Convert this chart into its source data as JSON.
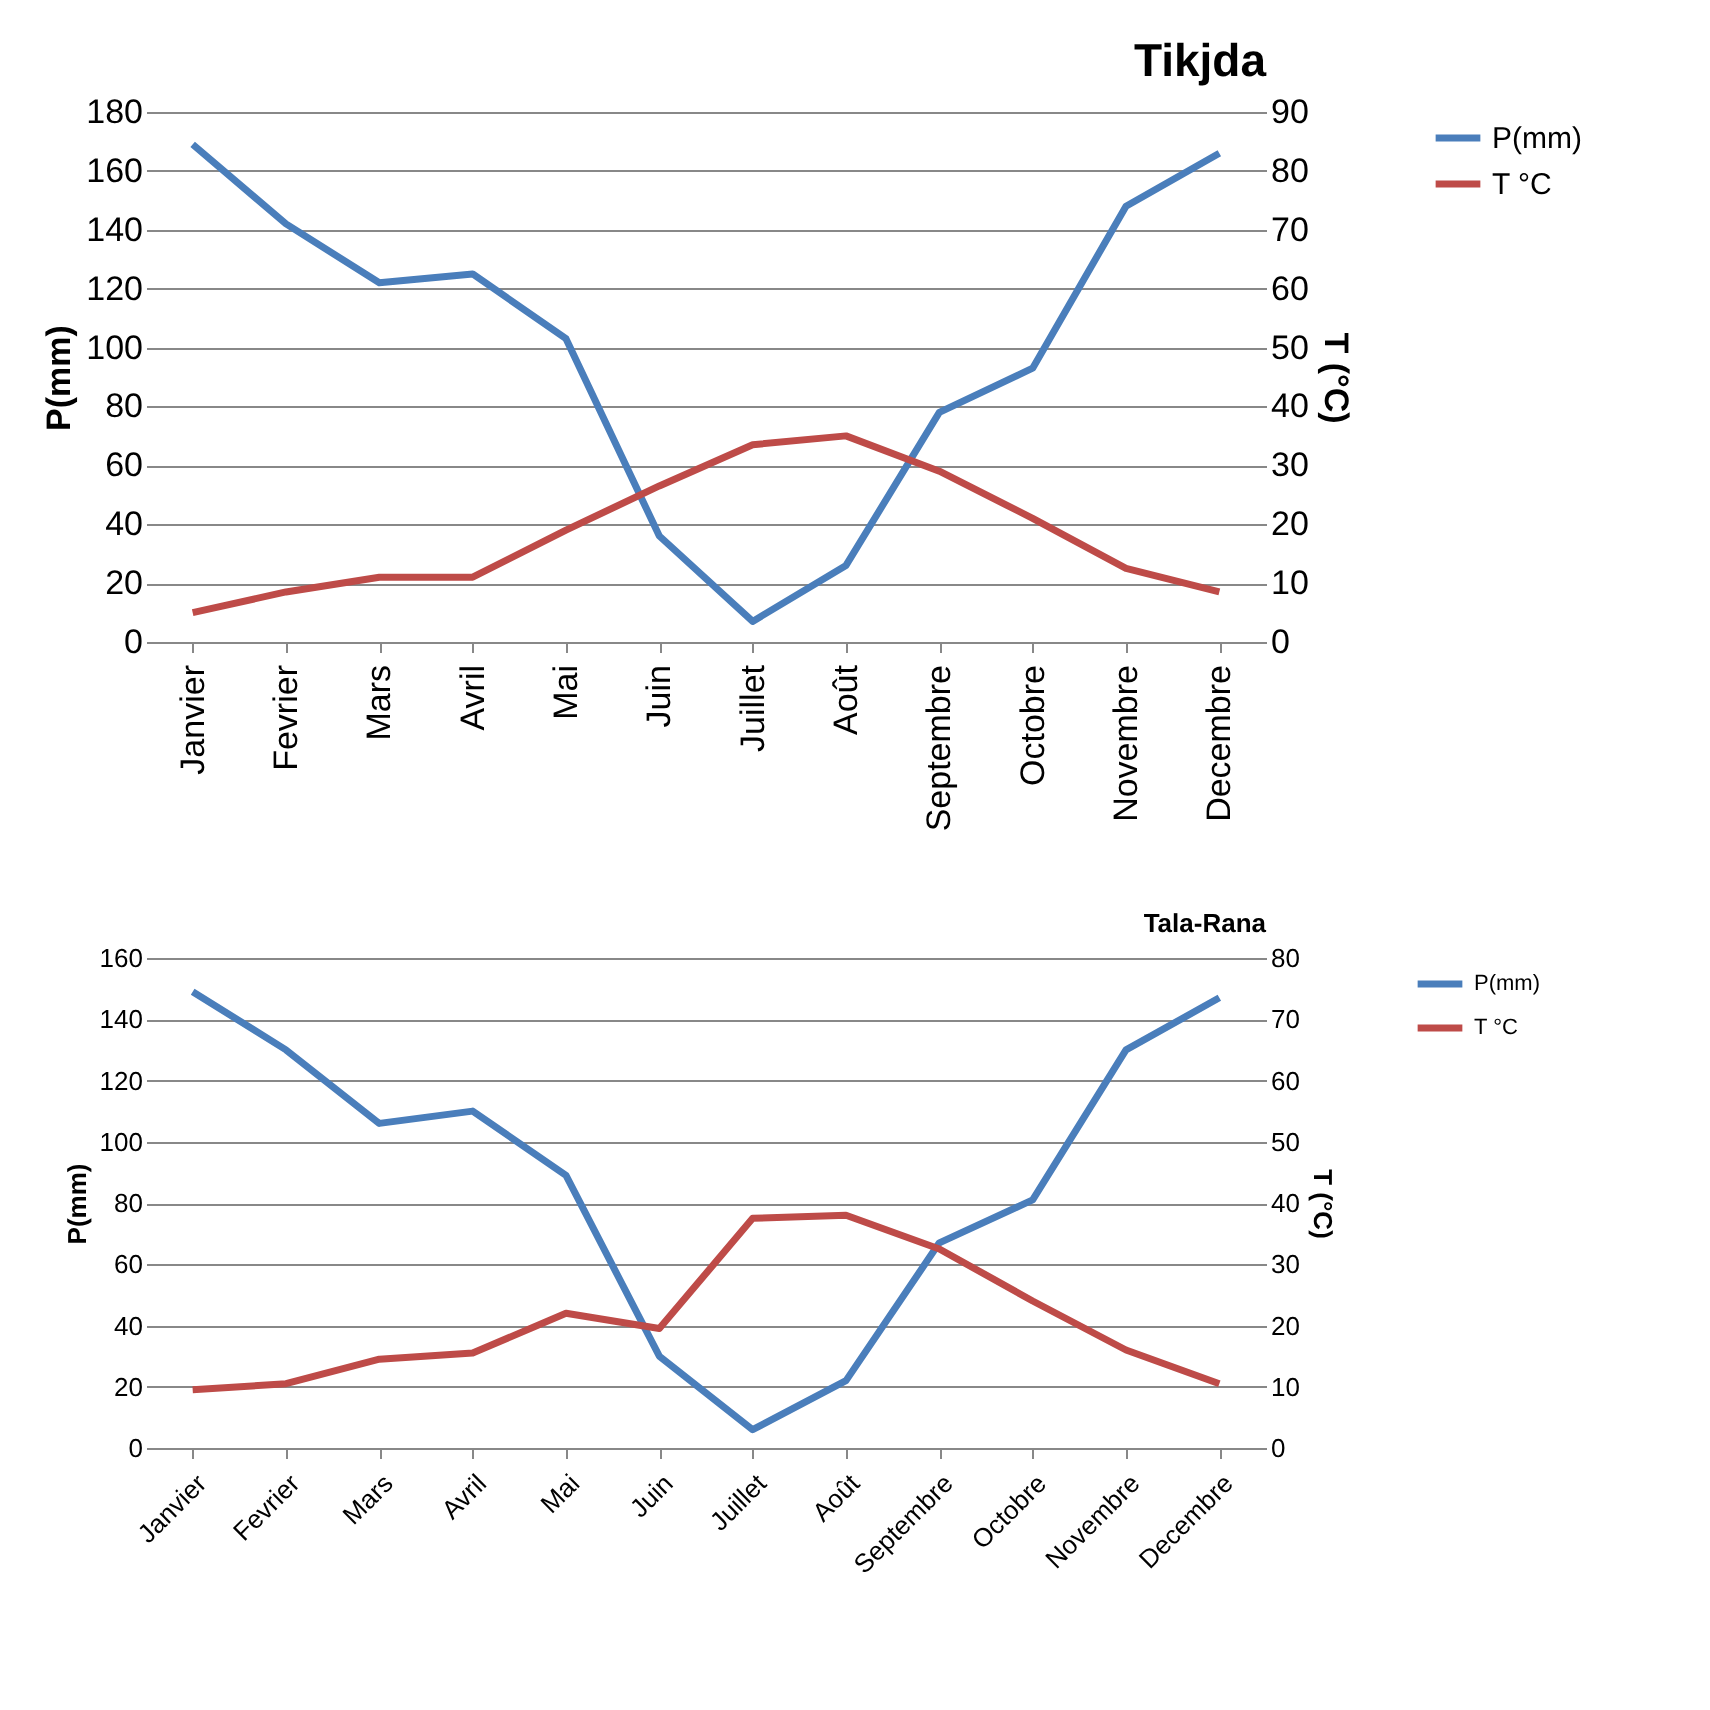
{
  "chart_data": [
    {
      "type": "line",
      "title": "Tikjda",
      "ylabel": "P(mm)",
      "y2label": "T (°C)",
      "categories": [
        "Janvier",
        "Fevrier",
        "Mars",
        "Avril",
        "Mai",
        "Juin",
        "Juillet",
        "Août",
        "Septembre",
        "Octobre",
        "Novembre",
        "Decembre"
      ],
      "series": [
        {
          "name": "P(mm)",
          "color": "#4a7ebb",
          "values": [
            169,
            142,
            122,
            125,
            103,
            36,
            7,
            26,
            78,
            93,
            148,
            166
          ]
        },
        {
          "name": "T °C",
          "color": "#be4b48",
          "axis": "y2",
          "values": [
            5,
            8.5,
            11,
            11,
            19,
            26.5,
            33.5,
            35,
            29,
            21,
            12.5,
            8.5
          ]
        }
      ],
      "ylim": [
        0,
        180
      ],
      "yticks": [
        0,
        20,
        40,
        60,
        80,
        100,
        120,
        140,
        160,
        180
      ],
      "y2lim": [
        0,
        90
      ],
      "y2ticks": [
        0,
        10,
        20,
        30,
        40,
        50,
        60,
        70,
        80,
        90
      ],
      "grid": "y",
      "legend": "right"
    },
    {
      "type": "line",
      "title": "Tala-Rana",
      "ylabel": "P(mm)",
      "y2label": "T (°C)",
      "categories": [
        "Janvier",
        "Fevrier",
        "Mars",
        "Avril",
        "Mai",
        "Juin",
        "Juillet",
        "Août",
        "Septembre",
        "Octobre",
        "Novembre",
        "Decembre"
      ],
      "series": [
        {
          "name": "P(mm)",
          "color": "#4a7ebb",
          "values": [
            149,
            130,
            106,
            110,
            89,
            30,
            6,
            22,
            67,
            81,
            130,
            147
          ]
        },
        {
          "name": "T °C",
          "color": "#be4b48",
          "axis": "y2",
          "values": [
            9.5,
            10.5,
            14.5,
            15.5,
            22,
            19.5,
            37.5,
            38,
            32.5,
            24,
            16,
            10.5
          ]
        }
      ],
      "ylim": [
        0,
        160
      ],
      "yticks": [
        0,
        20,
        40,
        60,
        80,
        100,
        120,
        140,
        160
      ],
      "y2lim": [
        0,
        80
      ],
      "y2ticks": [
        0,
        10,
        20,
        30,
        40,
        50,
        60,
        70,
        80
      ],
      "grid": "y",
      "legend": "right"
    }
  ]
}
